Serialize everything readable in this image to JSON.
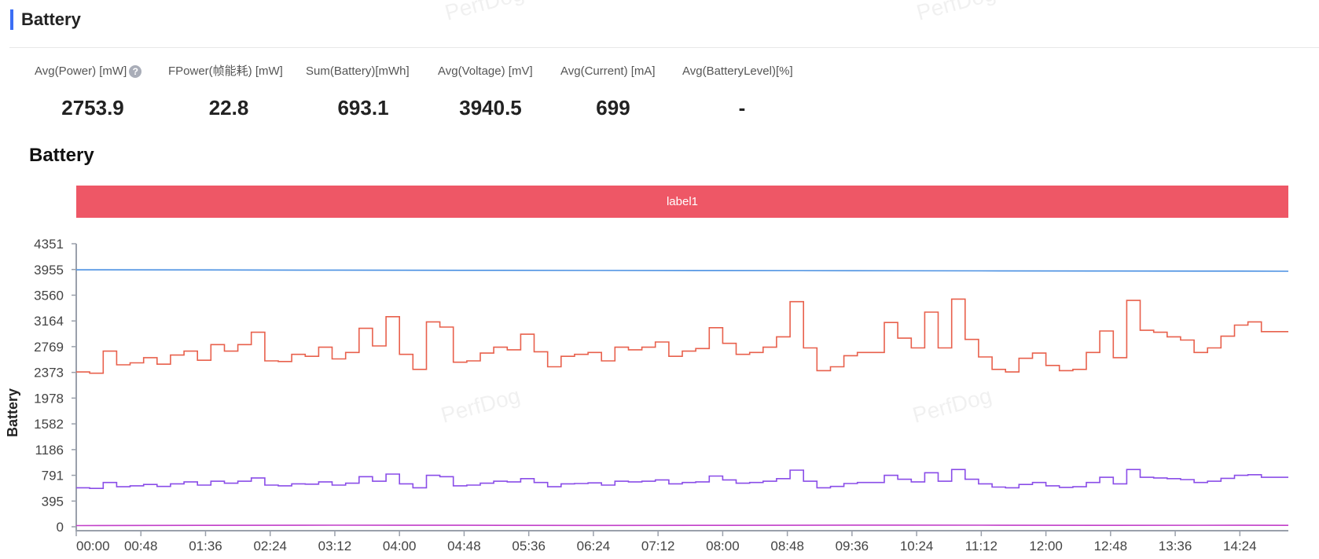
{
  "header": {
    "title": "Battery"
  },
  "watermark": "PerfDog",
  "stats": [
    {
      "label": "Avg(Power) [mW]",
      "value": "2753.9",
      "help": "?"
    },
    {
      "label": "FPower(帧能耗) [mW]",
      "value": "22.8"
    },
    {
      "label": "Sum(Battery)[mWh]",
      "value": "693.1"
    },
    {
      "label": "Avg(Voltage) [mV]",
      "value": "3940.5"
    },
    {
      "label": "Avg(Current) [mA]",
      "value": "699"
    },
    {
      "label": "Avg(BatteryLevel)[%]",
      "value": "-"
    }
  ],
  "chart_title": "Battery",
  "label_band": "label1",
  "colors": {
    "accent": "#3b6ef5",
    "band": "#ee5766",
    "voltage": "#4a90e2",
    "power": "#e8604c",
    "current": "#8a4de8",
    "fpower": "#c23fc9"
  },
  "chart_data": {
    "type": "line",
    "ylabel": "Battery",
    "xlabel": "",
    "title": "",
    "ylim": [
      0,
      4351
    ],
    "yticks": [
      0,
      395,
      791,
      1186,
      1582,
      1978,
      2373,
      2769,
      3164,
      3560,
      3955,
      4351
    ],
    "xlim_minutes": [
      0,
      900
    ],
    "xticks": [
      "00:00",
      "00:48",
      "01:36",
      "02:24",
      "03:12",
      "04:00",
      "04:48",
      "05:36",
      "06:24",
      "07:12",
      "08:00",
      "08:48",
      "09:36",
      "10:24",
      "11:12",
      "12:00",
      "12:48",
      "13:36",
      "14:24"
    ],
    "series": [
      {
        "key": "voltage",
        "step": false,
        "x": [
          "00:00",
          "01:36",
          "03:12",
          "04:48",
          "06:24",
          "08:00",
          "09:36",
          "11:12",
          "12:48",
          "14:24",
          "15:00"
        ],
        "values": [
          3950,
          3948,
          3945,
          3943,
          3940,
          3938,
          3936,
          3934,
          3932,
          3930,
          3928
        ]
      },
      {
        "key": "power",
        "step": true,
        "x": [
          "00:00",
          "00:10",
          "00:20",
          "00:30",
          "00:40",
          "00:50",
          "01:00",
          "01:10",
          "01:20",
          "01:30",
          "01:40",
          "01:50",
          "02:00",
          "02:10",
          "02:20",
          "02:30",
          "02:40",
          "02:50",
          "03:00",
          "03:10",
          "03:20",
          "03:30",
          "03:40",
          "03:50",
          "04:00",
          "04:10",
          "04:20",
          "04:30",
          "04:40",
          "04:50",
          "05:00",
          "05:10",
          "05:20",
          "05:30",
          "05:40",
          "05:50",
          "06:00",
          "06:10",
          "06:20",
          "06:30",
          "06:40",
          "06:50",
          "07:00",
          "07:10",
          "07:20",
          "07:30",
          "07:40",
          "07:50",
          "08:00",
          "08:10",
          "08:20",
          "08:30",
          "08:40",
          "08:50",
          "09:00",
          "09:10",
          "09:20",
          "09:30",
          "09:40",
          "09:50",
          "10:00",
          "10:10",
          "10:20",
          "10:30",
          "10:40",
          "10:50",
          "11:00",
          "11:10",
          "11:20",
          "11:30",
          "11:40",
          "11:50",
          "12:00",
          "12:10",
          "12:20",
          "12:30",
          "12:40",
          "12:50",
          "13:00",
          "13:10",
          "13:20",
          "13:30",
          "13:40",
          "13:50",
          "14:00",
          "14:10",
          "14:20",
          "14:30",
          "14:40",
          "14:50",
          "15:00"
        ],
        "values": [
          2380,
          2360,
          2700,
          2490,
          2520,
          2600,
          2500,
          2640,
          2700,
          2560,
          2800,
          2700,
          2800,
          2990,
          2550,
          2540,
          2650,
          2620,
          2760,
          2580,
          2680,
          3050,
          2780,
          3230,
          2650,
          2420,
          3150,
          3070,
          2530,
          2550,
          2670,
          2760,
          2720,
          2960,
          2690,
          2460,
          2620,
          2650,
          2680,
          2550,
          2760,
          2720,
          2760,
          2840,
          2620,
          2700,
          2740,
          3060,
          2820,
          2650,
          2680,
          2760,
          2920,
          3460,
          2750,
          2400,
          2460,
          2630,
          2680,
          2680,
          3140,
          2900,
          2750,
          3300,
          2750,
          3500,
          2880,
          2610,
          2420,
          2380,
          2590,
          2670,
          2480,
          2400,
          2420,
          2680,
          3010,
          2600,
          3480,
          3020,
          2990,
          2920,
          2870,
          2680,
          2750,
          2930,
          3100,
          3150,
          3000,
          3000,
          3000
        ]
      },
      {
        "key": "current",
        "step": true,
        "x": [
          "00:00",
          "00:10",
          "00:20",
          "00:30",
          "00:40",
          "00:50",
          "01:00",
          "01:10",
          "01:20",
          "01:30",
          "01:40",
          "01:50",
          "02:00",
          "02:10",
          "02:20",
          "02:30",
          "02:40",
          "02:50",
          "03:00",
          "03:10",
          "03:20",
          "03:30",
          "03:40",
          "03:50",
          "04:00",
          "04:10",
          "04:20",
          "04:30",
          "04:40",
          "04:50",
          "05:00",
          "05:10",
          "05:20",
          "05:30",
          "05:40",
          "05:50",
          "06:00",
          "06:10",
          "06:20",
          "06:30",
          "06:40",
          "06:50",
          "07:00",
          "07:10",
          "07:20",
          "07:30",
          "07:40",
          "07:50",
          "08:00",
          "08:10",
          "08:20",
          "08:30",
          "08:40",
          "08:50",
          "09:00",
          "09:10",
          "09:20",
          "09:30",
          "09:40",
          "09:50",
          "10:00",
          "10:10",
          "10:20",
          "10:30",
          "10:40",
          "10:50",
          "11:00",
          "11:10",
          "11:20",
          "11:30",
          "11:40",
          "11:50",
          "12:00",
          "12:10",
          "12:20",
          "12:30",
          "12:40",
          "12:50",
          "13:00",
          "13:10",
          "13:20",
          "13:30",
          "13:40",
          "13:50",
          "14:00",
          "14:10",
          "14:20",
          "14:30",
          "14:40",
          "14:50",
          "15:00"
        ],
        "values": [
          600,
          590,
          680,
          615,
          630,
          650,
          620,
          660,
          690,
          640,
          700,
          670,
          700,
          750,
          640,
          630,
          660,
          655,
          690,
          640,
          670,
          770,
          700,
          810,
          660,
          600,
          790,
          770,
          630,
          640,
          670,
          700,
          690,
          740,
          680,
          615,
          660,
          665,
          675,
          640,
          700,
          690,
          700,
          720,
          660,
          680,
          690,
          780,
          720,
          670,
          680,
          700,
          740,
          870,
          700,
          600,
          620,
          665,
          680,
          680,
          790,
          730,
          690,
          830,
          700,
          880,
          730,
          660,
          610,
          600,
          650,
          680,
          630,
          605,
          615,
          680,
          760,
          660,
          880,
          760,
          750,
          740,
          725,
          680,
          700,
          745,
          790,
          800,
          760,
          760,
          760
        ]
      },
      {
        "key": "fpower",
        "step": false,
        "x": [
          "00:00",
          "01:36",
          "03:12",
          "04:48",
          "06:24",
          "08:00",
          "09:36",
          "11:12",
          "12:48",
          "14:24",
          "15:00"
        ],
        "values": [
          18,
          22,
          24,
          23,
          21,
          22,
          25,
          24,
          22,
          23,
          22
        ]
      }
    ]
  }
}
